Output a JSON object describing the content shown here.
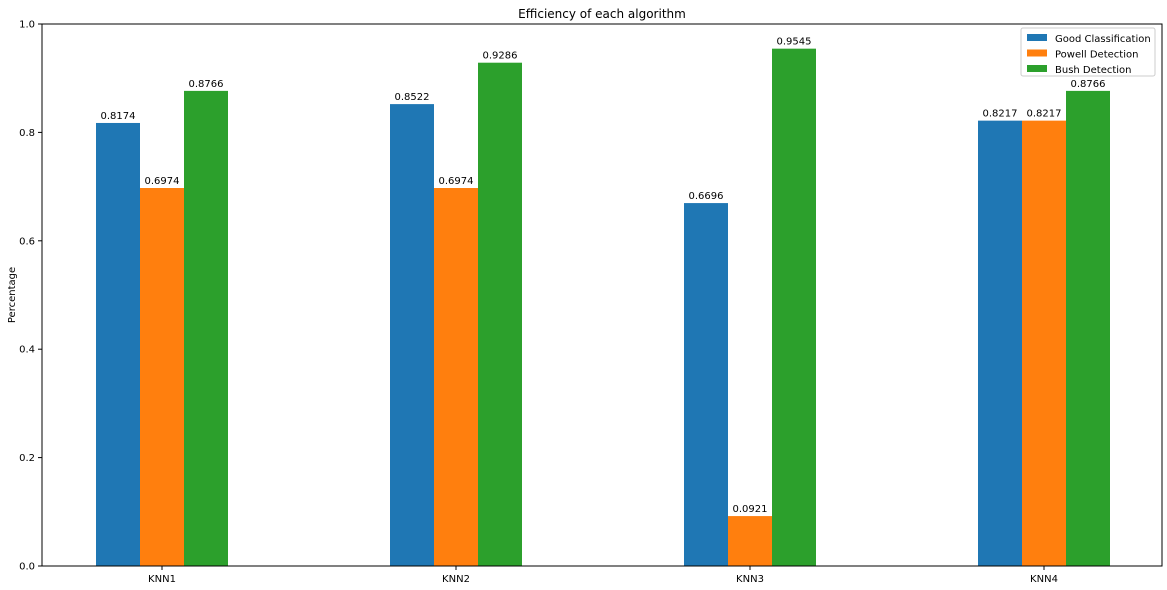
{
  "chart_data": {
    "type": "bar",
    "title": "Efficiency of each algorithm",
    "xlabel": "",
    "ylabel": "Percentage",
    "categories": [
      "KNN1",
      "KNN2",
      "KNN3",
      "KNN4"
    ],
    "series": [
      {
        "name": "Good Classification",
        "color": "#1f77b4",
        "values": [
          0.8174,
          0.8522,
          0.6696,
          0.8217
        ],
        "labels": [
          "0.8174",
          "0.8522",
          "0.6696",
          "0.8217"
        ]
      },
      {
        "name": "Powell Detection",
        "color": "#ff7f0e",
        "values": [
          0.6974,
          0.6974,
          0.0921,
          0.8217
        ],
        "labels": [
          "0.6974",
          "0.6974",
          "0.0921",
          "0.8217"
        ]
      },
      {
        "name": "Bush Detection",
        "color": "#2ca02c",
        "values": [
          0.8766,
          0.9286,
          0.9545,
          0.8766
        ],
        "labels": [
          "0.8766",
          "0.9286",
          "0.9545",
          "0.8766"
        ]
      }
    ],
    "ylim": [
      0,
      1.0
    ],
    "yticks": [
      "0.0",
      "0.2",
      "0.4",
      "0.6",
      "0.8",
      "1.0"
    ],
    "ytick_values": [
      0,
      0.2,
      0.4,
      0.6,
      0.8,
      1.0
    ],
    "grid": false,
    "legend_position": "top-right"
  }
}
